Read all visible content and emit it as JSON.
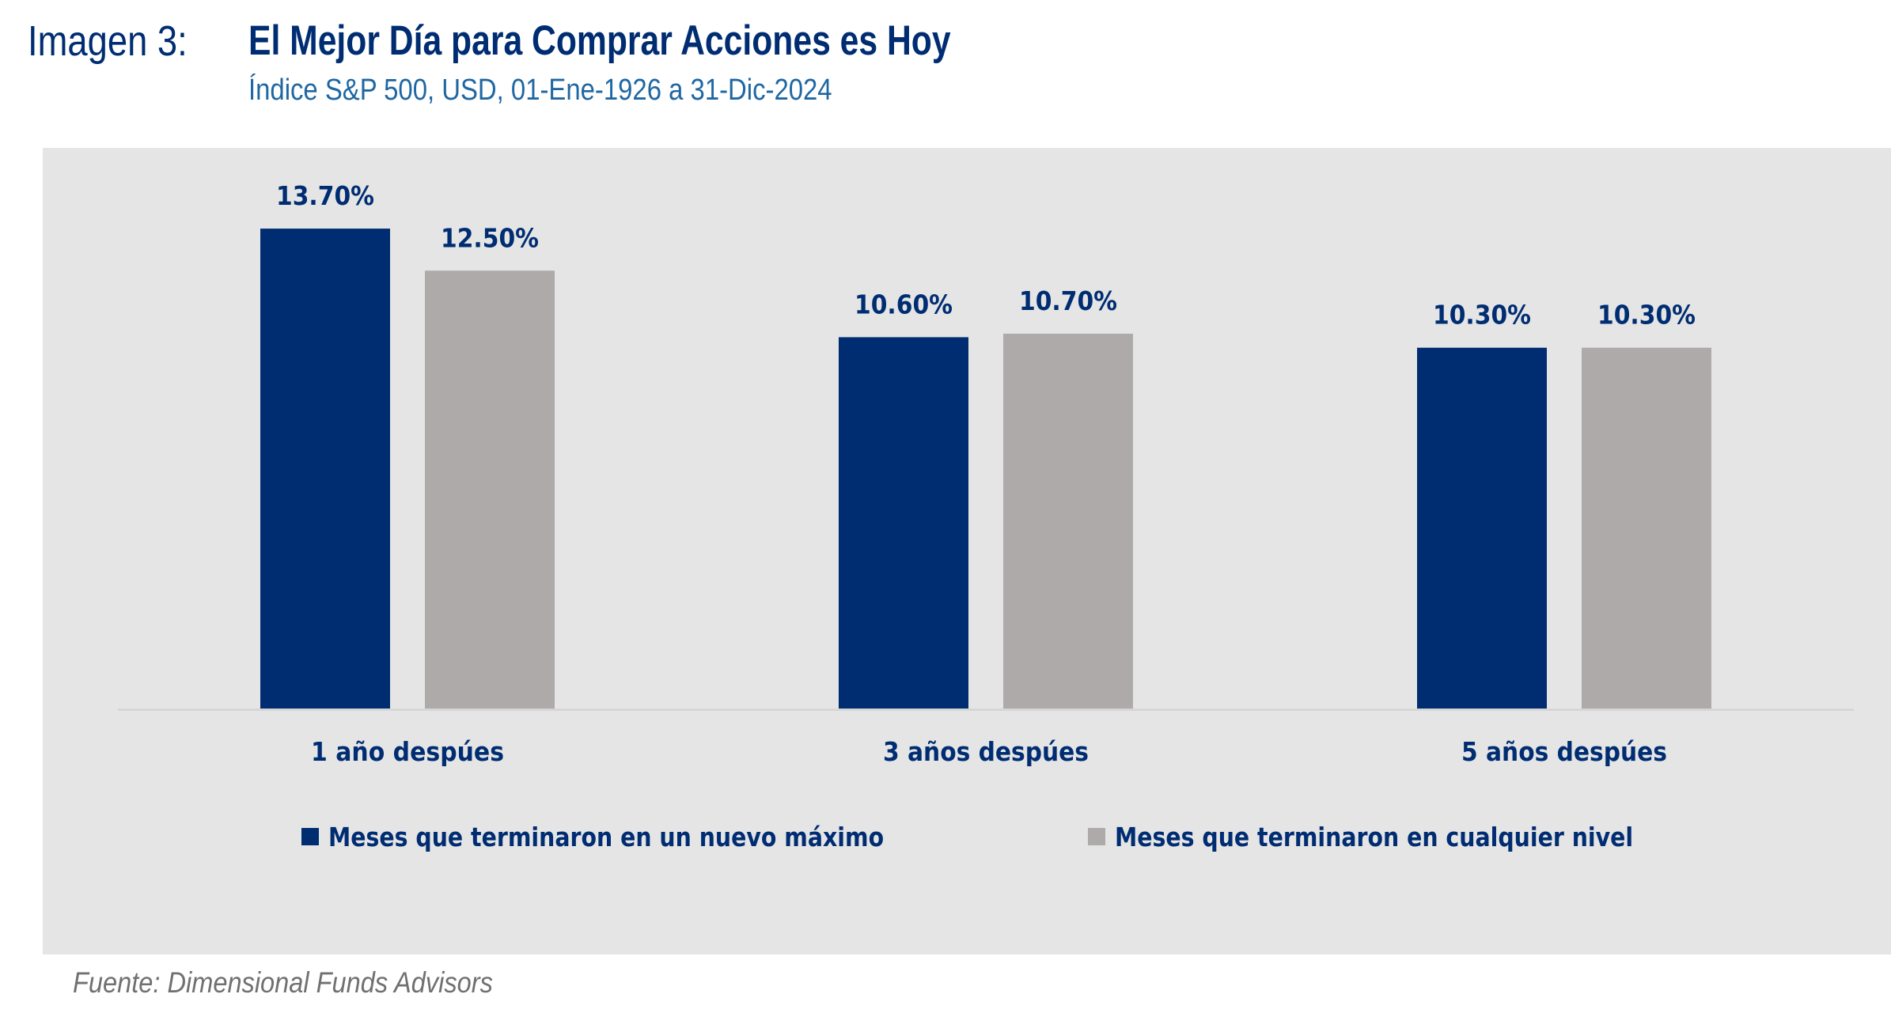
{
  "header": {
    "figure_label": "Imagen 3:",
    "title": "El Mejor Día para Comprar Acciones es Hoy",
    "subtitle": "Índice S&P 500, USD, 01-Ene-1926 a 31-Dic-2024"
  },
  "footer": {
    "source": "Fuente: Dimensional Funds Advisors"
  },
  "colors": {
    "series_new_high": "#002d72",
    "series_any_level": "#aeaaa9",
    "panel_background": "#e5e5e5",
    "axis_line": "#d6d6d6",
    "text_navy": "#002d72"
  },
  "chart_data": {
    "type": "bar",
    "title": "El Mejor Día para Comprar Acciones es Hoy",
    "subtitle": "Índice S&P 500, USD, 01-Ene-1926 a 31-Dic-2024",
    "xlabel": "",
    "ylabel": "",
    "categories": [
      "1 año despúes",
      "3 años despúes",
      "5 años despúes"
    ],
    "series": [
      {
        "name": "Meses que terminaron en un nuevo máximo",
        "values": [
          13.7,
          10.6,
          10.3
        ],
        "labels": [
          "13.70%",
          "10.60%",
          "10.30%"
        ],
        "color": "#002d72"
      },
      {
        "name": "Meses que terminaron en cualquier nivel",
        "values": [
          12.5,
          10.7,
          10.3
        ],
        "labels": [
          "12.50%",
          "10.70%",
          "10.30%"
        ],
        "color": "#aeaaa9"
      }
    ],
    "ylim": [
      0,
      14
    ],
    "y_axis_visible": false,
    "grid": false,
    "legend_position": "bottom-center",
    "unit": "%"
  }
}
